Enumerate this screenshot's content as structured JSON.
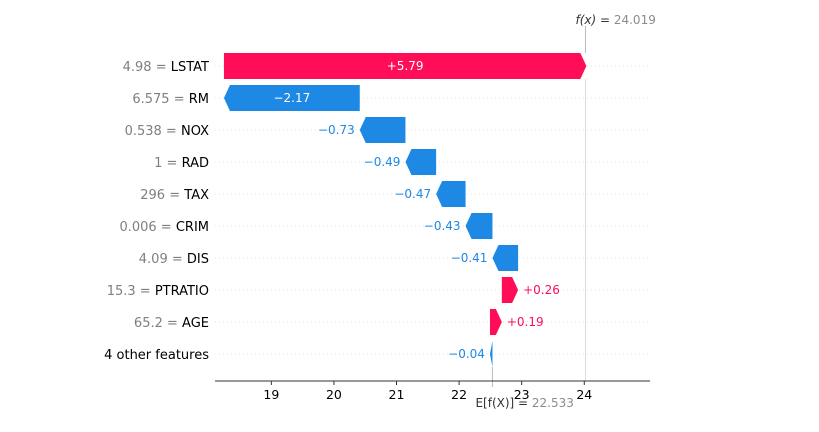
{
  "chart_data": {
    "type": "waterfall",
    "base_value": 22.533,
    "output_value": 24.019,
    "base_label": {
      "prefix": "E[f(X)] = ",
      "value": "22.533"
    },
    "output_label": {
      "prefix": "f(x) = ",
      "value": "24.019"
    },
    "features": [
      {
        "name": "LSTAT",
        "value": "4.98",
        "contribution": 5.79,
        "text": "+5.79"
      },
      {
        "name": "RM",
        "value": "6.575",
        "contribution": -2.17,
        "text": "−2.17"
      },
      {
        "name": "NOX",
        "value": "0.538",
        "contribution": -0.73,
        "text": "−0.73"
      },
      {
        "name": "RAD",
        "value": "1",
        "contribution": -0.49,
        "text": "−0.49"
      },
      {
        "name": "TAX",
        "value": "296",
        "contribution": -0.47,
        "text": "−0.47"
      },
      {
        "name": "CRIM",
        "value": "0.006",
        "contribution": -0.43,
        "text": "−0.43"
      },
      {
        "name": "DIS",
        "value": "4.09",
        "contribution": -0.41,
        "text": "−0.41"
      },
      {
        "name": "PTRATIO",
        "value": "15.3",
        "contribution": 0.26,
        "text": "+0.26"
      },
      {
        "name": "AGE",
        "value": "65.2",
        "contribution": 0.19,
        "text": "+0.19"
      },
      {
        "name": "4 other features",
        "value": "",
        "contribution": -0.04,
        "text": "−0.04"
      }
    ],
    "x_ticks": [
      19,
      20,
      21,
      22,
      23,
      24
    ],
    "xlim": [
      18.1,
      25.05
    ],
    "colors": {
      "positive": "#ff0d57",
      "negative": "#1e88e5"
    }
  }
}
